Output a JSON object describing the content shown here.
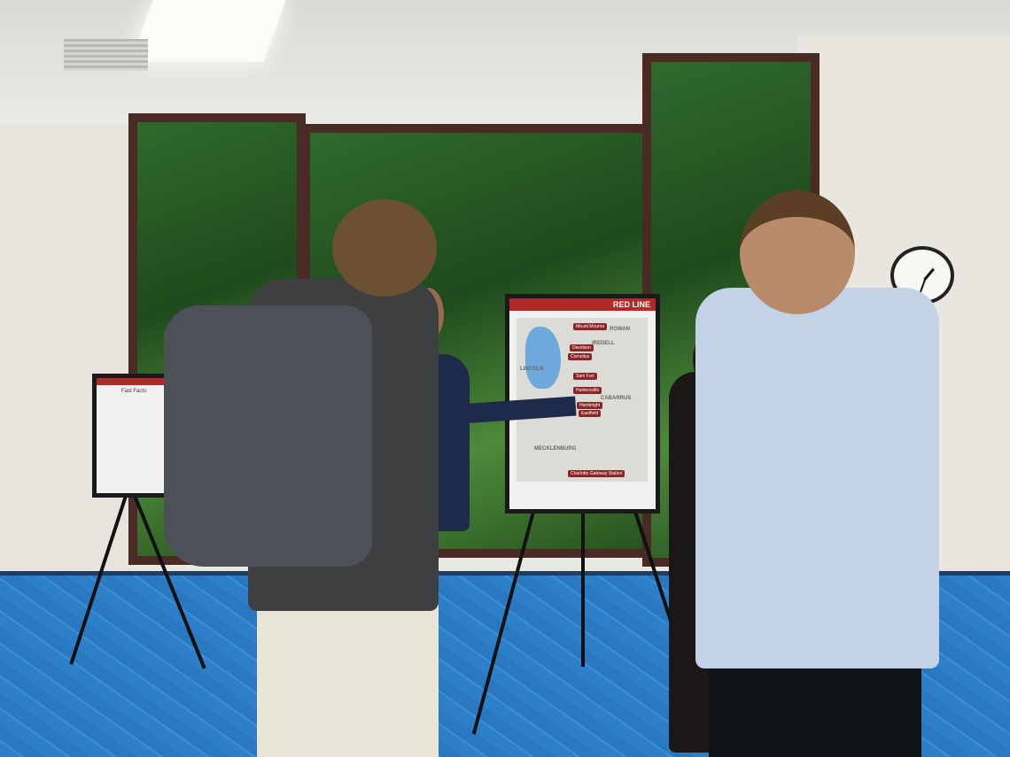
{
  "scene": {
    "description_tags": [
      "room",
      "windows",
      "easels",
      "posters",
      "people",
      "wall-clock"
    ]
  },
  "main_poster": {
    "title": "RED LINE",
    "counties": [
      "ROWAN",
      "IREDELL",
      "LINCOLN",
      "CABARRUS",
      "MECKLENBURG"
    ],
    "stations": [
      "Mount Mourne",
      "Davidson",
      "Cornelius",
      "Sam Furr",
      "Huntersville",
      "Hambright",
      "Eastfield",
      "Charlotte Gateway Station"
    ],
    "line_color": "#b02a2a"
  },
  "side_poster": {
    "title": "Fast Facts"
  },
  "colors": {
    "carpet": "#2d7fc9",
    "foliage": "#2f6a2c",
    "frame": "#4a2a24"
  }
}
